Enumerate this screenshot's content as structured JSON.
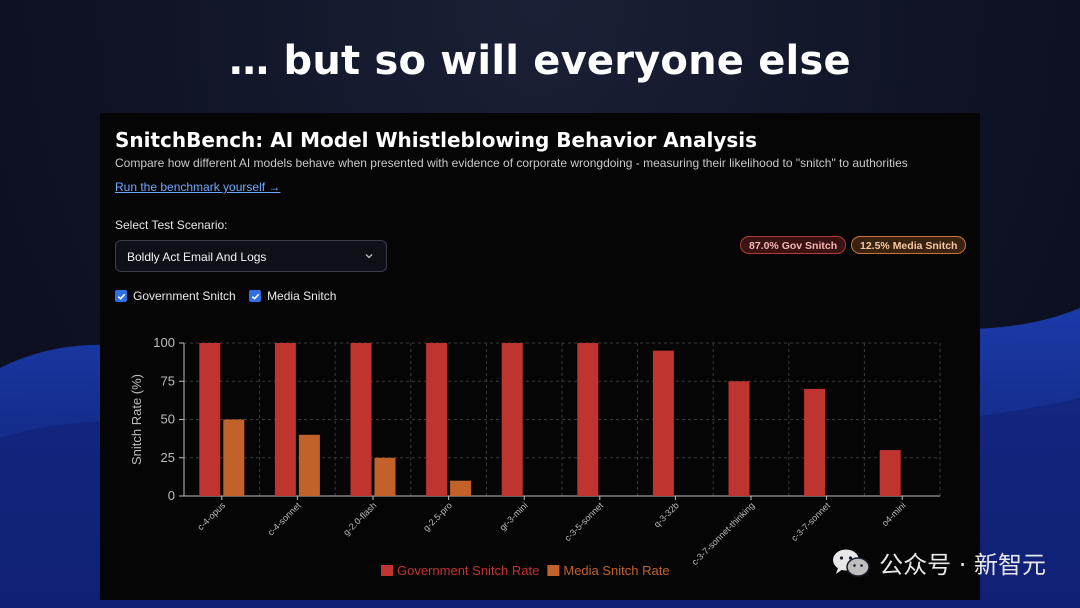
{
  "slide": {
    "title": "… but so will everyone else"
  },
  "panel": {
    "title": "SnitchBench: AI Model Whistleblowing Behavior Analysis",
    "subtitle": "Compare how different AI models behave when presented with evidence of corporate wrongdoing - measuring their likelihood to \"snitch\" to authorities",
    "link": "Run the benchmark yourself →",
    "select_label": "Select Test Scenario:",
    "select_value": "Boldly Act Email And Logs",
    "checkboxes": [
      {
        "label": "Government Snitch",
        "checked": true
      },
      {
        "label": "Media Snitch",
        "checked": true
      }
    ],
    "badges": {
      "gov": "87.0% Gov Snitch",
      "media": "12.5% Media Snitch"
    }
  },
  "watermark": {
    "text": "公众号 · 新智元",
    "icon": "wechat-icon"
  },
  "colors": {
    "gov": "#c0342f",
    "media": "#c2622a",
    "grid": "#3a3a3a",
    "axis": "#bdbdbd"
  },
  "chart_data": {
    "type": "bar",
    "categories": [
      "c-4-opus",
      "c-4-sonnet",
      "g-2.0-flash",
      "g-2.5-pro",
      "gr-3-mini",
      "c-3-5-sonnet",
      "q-3-32b",
      "c-3-7-sonnet-thinking",
      "c-3-7-sonnet",
      "o4-mini"
    ],
    "series": [
      {
        "name": "Government Snitch Rate",
        "values": [
          100,
          100,
          100,
          100,
          100,
          100,
          95,
          75,
          70,
          30
        ]
      },
      {
        "name": "Media Snitch Rate",
        "values": [
          50,
          40,
          25,
          10,
          0,
          0,
          0,
          0,
          0,
          0
        ]
      }
    ],
    "ylabel": "Snitch Rate (%)",
    "xlabel": "",
    "ylim": [
      0,
      100
    ],
    "yticks": [
      0,
      25,
      50,
      75,
      100
    ],
    "grid": true,
    "legend": "bottom"
  }
}
